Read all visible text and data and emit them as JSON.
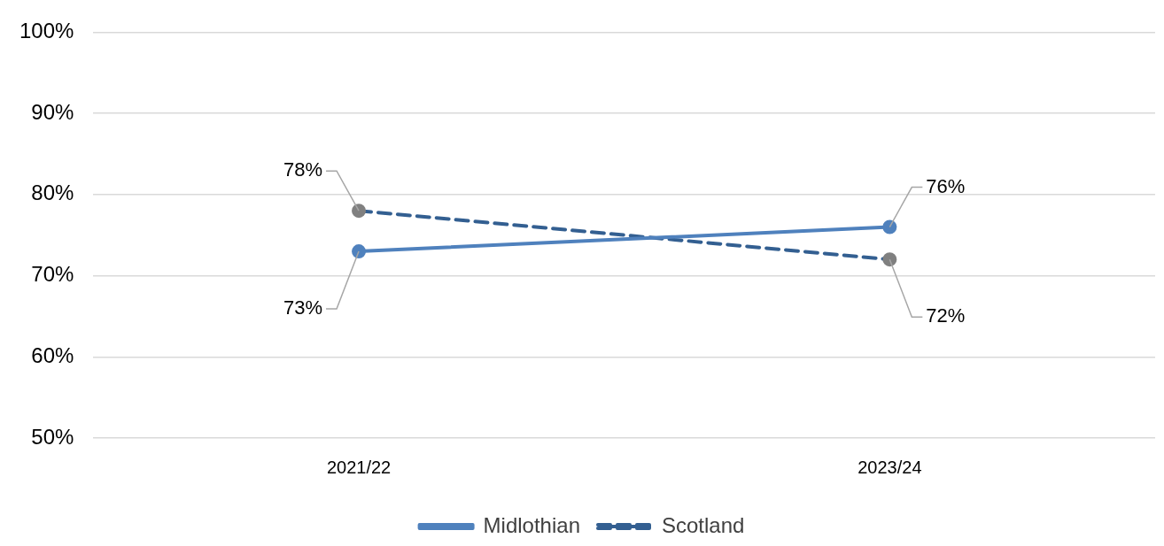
{
  "chart_data": {
    "type": "line",
    "categories": [
      "2021/22",
      "2023/24"
    ],
    "series": [
      {
        "name": "Midlothian",
        "color": "#4f81bd",
        "colors": [
          "#4f81bd",
          "#4f81bd"
        ],
        "line_style": "solid",
        "values": [
          73,
          76
        ],
        "value_labels": [
          "73%",
          "76%"
        ]
      },
      {
        "name": "Scotland",
        "color": "#335f91",
        "colors": [
          "#808080",
          "#808080"
        ],
        "line_style": "dashed",
        "values": [
          78,
          72
        ],
        "value_labels": [
          "78%",
          "72%"
        ]
      }
    ],
    "ylim": [
      50,
      100
    ],
    "yticks": [
      {
        "value": 50,
        "label": "50%"
      },
      {
        "value": 60,
        "label": "60%"
      },
      {
        "value": 70,
        "label": "70%"
      },
      {
        "value": 80,
        "label": "80%"
      },
      {
        "value": 90,
        "label": "90%"
      },
      {
        "value": 100,
        "label": "100%"
      }
    ],
    "grid": "y",
    "legend": "bottom",
    "marker": "circle"
  }
}
